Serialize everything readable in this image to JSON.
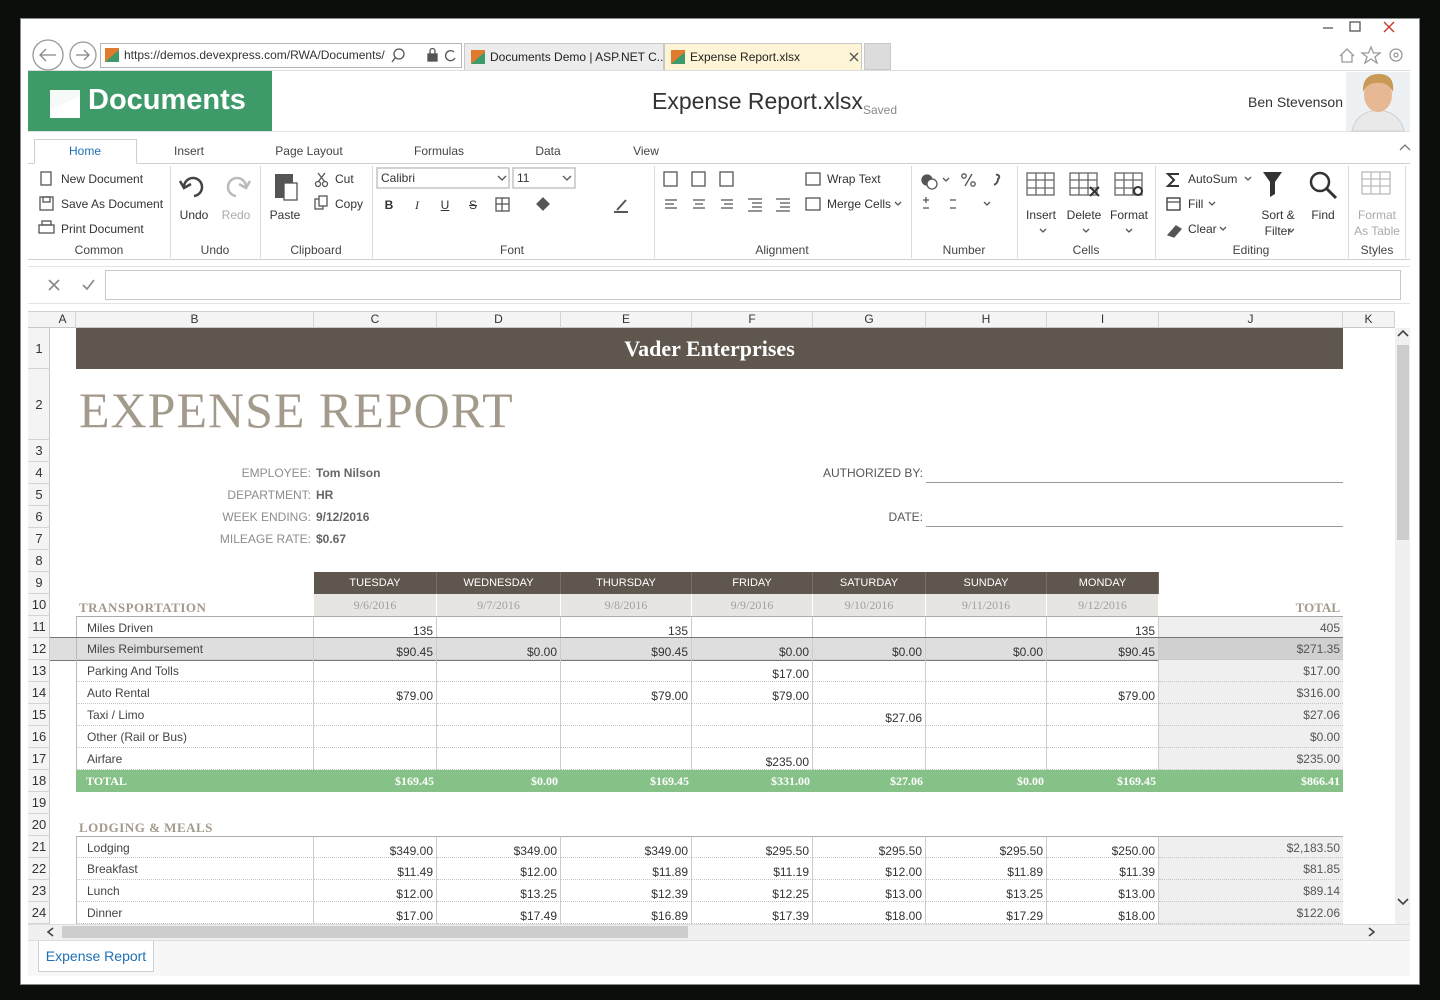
{
  "browser": {
    "url": "https://demos.devexpress.com/RWA/Documents/",
    "tabs": [
      "Documents Demo | ASP.NET C...",
      "Expense Report.xlsx"
    ]
  },
  "app": {
    "logo": "Documents",
    "file_name": "Expense Report.xlsx",
    "status": "Saved",
    "user": "Ben Stevenson"
  },
  "ribbon": {
    "tabs": [
      "Home",
      "Insert",
      "Page Layout",
      "Formulas",
      "Data",
      "View"
    ],
    "groups": [
      {
        "label": "Common",
        "items": [
          "New Document",
          "Save As Document",
          "Print Document"
        ]
      },
      {
        "label": "Undo",
        "items": [
          "Undo",
          "Redo"
        ]
      },
      {
        "label": "Clipboard",
        "items": [
          "Paste",
          "Cut",
          "Copy"
        ]
      },
      {
        "label": "Font",
        "font_name": "Calibri",
        "font_size": "11",
        "items": [
          "B",
          "I",
          "U",
          "S"
        ]
      },
      {
        "label": "Alignment",
        "items": [
          "Wrap Text",
          "Merge Cells"
        ]
      },
      {
        "label": "Number"
      },
      {
        "label": "Cells",
        "items": [
          "Insert",
          "Delete",
          "Format"
        ]
      },
      {
        "label": "Editing",
        "items": [
          "AutoSum",
          "Fill",
          "Clear",
          "Sort & Filter",
          "Find"
        ]
      },
      {
        "label": "Styles",
        "items": [
          "Format As Table"
        ]
      }
    ]
  },
  "sheet": {
    "columns": [
      "A",
      "B",
      "C",
      "D",
      "E",
      "F",
      "G",
      "H",
      "I",
      "J",
      "K"
    ],
    "row_numbers": [
      1,
      2,
      3,
      4,
      5,
      6,
      7,
      8,
      9,
      10,
      11,
      12,
      13,
      14,
      15,
      16,
      17,
      18,
      19,
      20,
      21,
      22,
      23,
      24
    ],
    "company": "Vader Enterprises",
    "report_title": "EXPENSE REPORT",
    "info": [
      {
        "label": "EMPLOYEE:",
        "value": "Tom Nilson"
      },
      {
        "label": "DEPARTMENT:",
        "value": "HR"
      },
      {
        "label": "WEEK ENDING:",
        "value": "9/12/2016"
      },
      {
        "label": "MILEAGE RATE:",
        "value": "$0.67"
      }
    ],
    "signoff_labels": [
      "AUTHORIZED BY:",
      "DATE:"
    ],
    "days": [
      "TUESDAY",
      "WEDNESDAY",
      "THURSDAY",
      "FRIDAY",
      "SATURDAY",
      "SUNDAY",
      "MONDAY"
    ],
    "dates": [
      "9/6/2016",
      "9/7/2016",
      "9/8/2016",
      "9/9/2016",
      "9/10/2016",
      "9/11/2016",
      "9/12/2016"
    ],
    "sections": [
      {
        "title": "TRANSPORTATION",
        "total_header": "TOTAL",
        "rows": [
          {
            "label": "Miles Driven",
            "values": [
              "135",
              null,
              "135",
              null,
              null,
              null,
              "135"
            ],
            "total": "405"
          },
          {
            "label": "Miles Reimbursement",
            "values": [
              "$90.45",
              "$0.00",
              "$90.45",
              "$0.00",
              "$0.00",
              "$0.00",
              "$90.45"
            ],
            "total": "$271.35"
          },
          {
            "label": "Parking And Tolls",
            "values": [
              null,
              null,
              null,
              "$17.00",
              null,
              null,
              null
            ],
            "total": "$17.00"
          },
          {
            "label": "Auto Rental",
            "values": [
              "$79.00",
              null,
              "$79.00",
              "$79.00",
              null,
              null,
              "$79.00"
            ],
            "total": "$316.00"
          },
          {
            "label": "Taxi / Limo",
            "values": [
              null,
              null,
              null,
              null,
              "$27.06",
              null,
              null
            ],
            "total": "$27.06"
          },
          {
            "label": "Other (Rail or Bus)",
            "values": [
              null,
              null,
              null,
              null,
              null,
              null,
              null
            ],
            "total": "$0.00"
          },
          {
            "label": "Airfare",
            "values": [
              null,
              null,
              null,
              "$235.00",
              null,
              null,
              null
            ],
            "total": "$235.00"
          }
        ],
        "total_row": {
          "label": "TOTAL",
          "values": [
            "$169.45",
            "$0.00",
            "$169.45",
            "$331.00",
            "$27.06",
            "$0.00",
            "$169.45"
          ],
          "total": "$866.41"
        }
      },
      {
        "title": "LODGING & MEALS",
        "rows": [
          {
            "label": "Lodging",
            "values": [
              "$349.00",
              "$349.00",
              "$349.00",
              "$295.50",
              "$295.50",
              "$295.50",
              "$250.00"
            ],
            "total": "$2,183.50"
          },
          {
            "label": "Breakfast",
            "values": [
              "$11.49",
              "$12.00",
              "$11.89",
              "$11.19",
              "$12.00",
              "$11.89",
              "$11.39"
            ],
            "total": "$81.85"
          },
          {
            "label": "Lunch",
            "values": [
              "$12.00",
              "$13.25",
              "$12.39",
              "$12.25",
              "$13.00",
              "$13.25",
              "$13.00"
            ],
            "total": "$89.14"
          },
          {
            "label": "Dinner",
            "values": [
              "$17.00",
              "$17.49",
              "$16.89",
              "$17.39",
              "$18.00",
              "$17.29",
              "$18.00"
            ],
            "total": "$122.06"
          }
        ]
      }
    ]
  },
  "sheet_tabs": [
    "Expense Report"
  ]
}
